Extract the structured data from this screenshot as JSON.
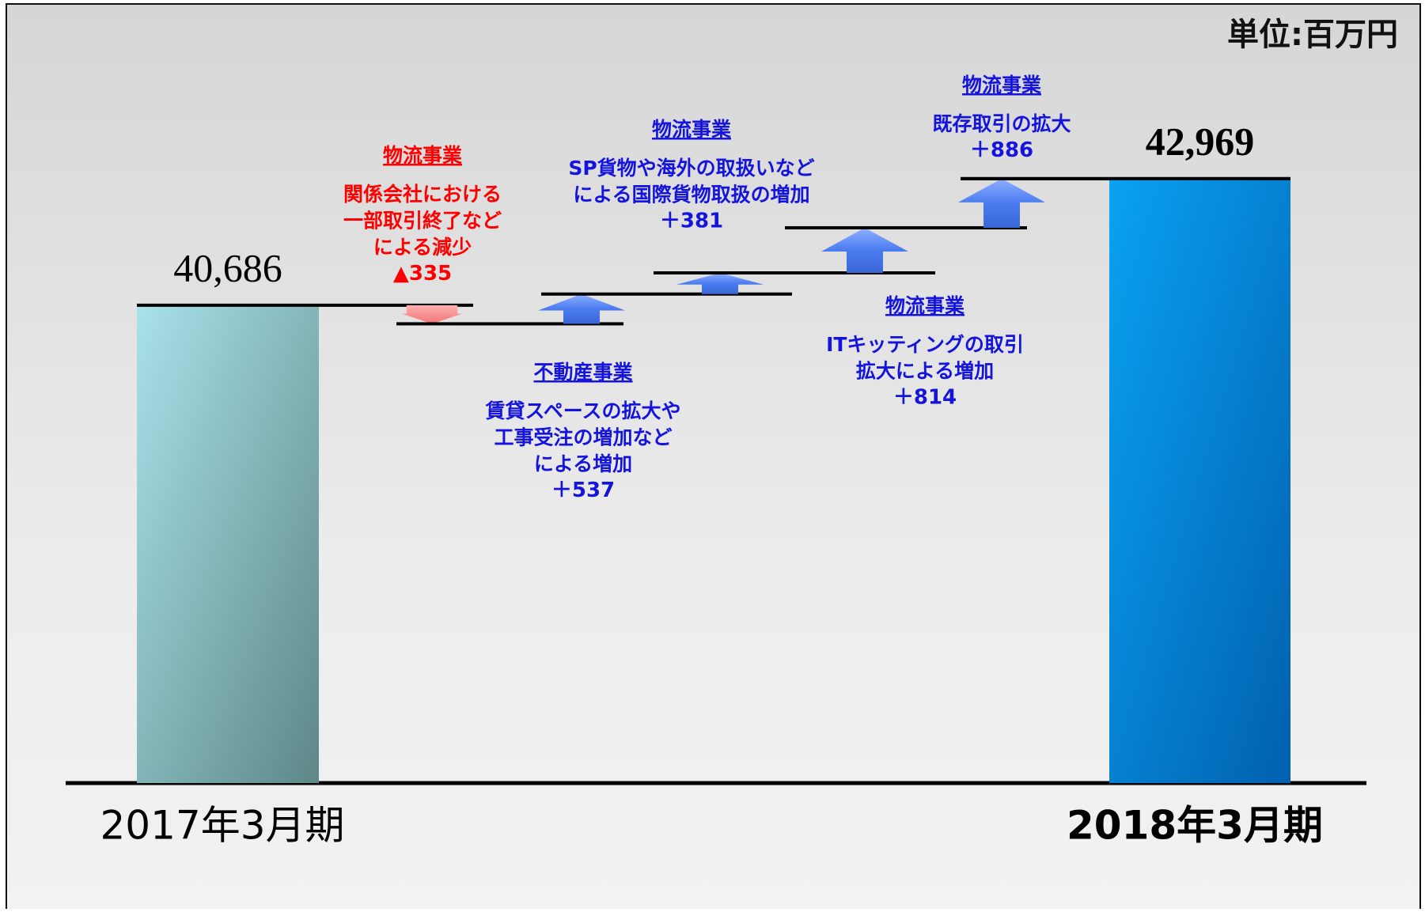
{
  "chart_data": {
    "type": "waterfall",
    "unit_label": "単位:百万円",
    "categories": [
      "2017年3月期",
      null,
      null,
      null,
      null,
      null,
      "2018年3月期"
    ],
    "values": [
      40686,
      -335,
      537,
      381,
      814,
      886,
      42969
    ],
    "value_labels": [
      "40,686",
      "▲335",
      "＋537",
      "＋381",
      "＋814",
      "＋886",
      "42,969"
    ],
    "details": [
      null,
      {
        "heading": "物流事業",
        "lines": [
          "関係会社における",
          "一部取引終了など",
          "による減少"
        ]
      },
      {
        "heading": "不動産事業",
        "lines": [
          "賃貸スペースの拡大や",
          "工事受注の増加など",
          "による増加"
        ]
      },
      {
        "heading": "物流事業",
        "lines": [
          "SP貨物や海外の取扱いなど",
          "による国際貨物取扱の増加"
        ]
      },
      {
        "heading": "物流事業",
        "lines": [
          "ITキッティングの取引",
          "拡大による増加"
        ]
      },
      {
        "heading": "物流事業",
        "lines": [
          "既存取引の拡大"
        ]
      },
      null
    ],
    "ylim": [
      32070,
      46190
    ],
    "start_color": [
      "#a9e2ea",
      "#5e8787"
    ],
    "end_color": [
      "#0aa2f2",
      "#0060ae"
    ],
    "increase_color": "#4a7cf0",
    "decrease_color": "#f27474",
    "increase_text_color": "#1414dc",
    "decrease_text_color": "#ff0000"
  }
}
